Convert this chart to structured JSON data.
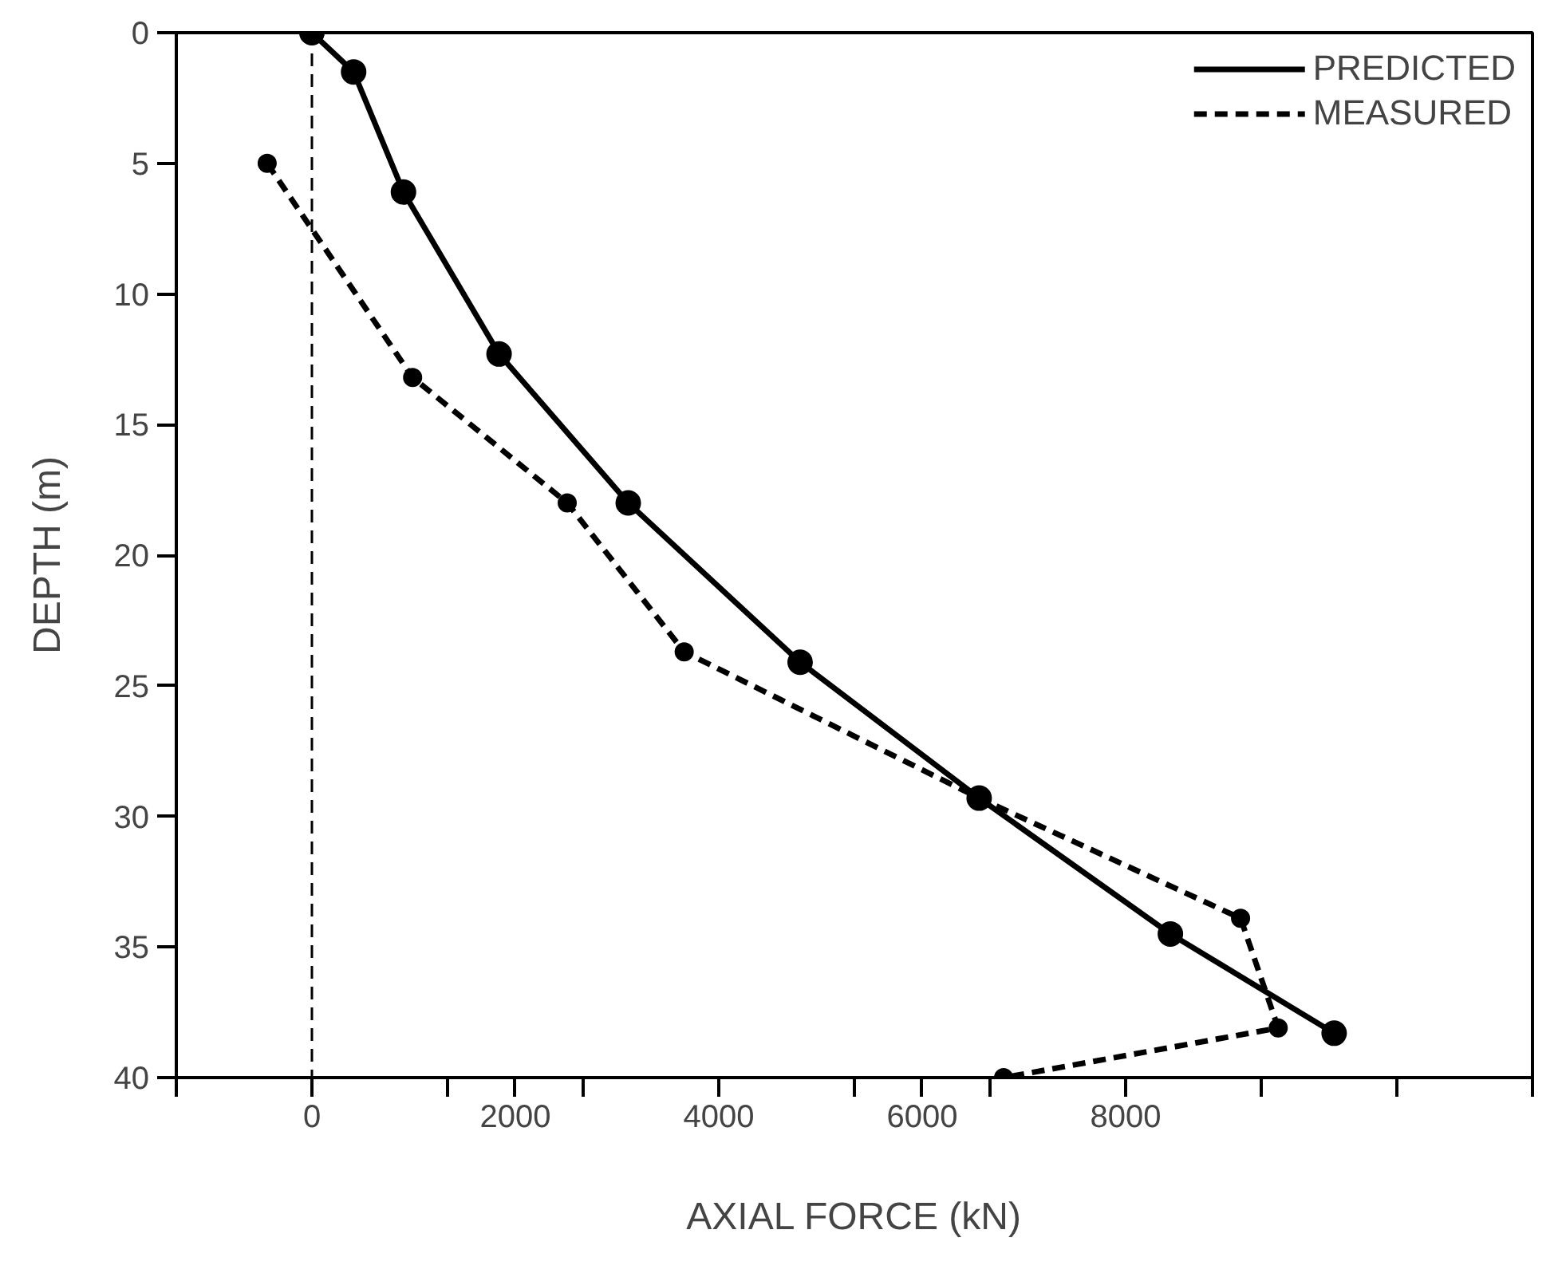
{
  "chart_data": {
    "type": "line",
    "xlabel": "AXIAL FORCE (kN)",
    "ylabel": "DEPTH (m)",
    "xlim": [
      -1333.33,
      12000
    ],
    "ylim": [
      40,
      0
    ],
    "xticks": [
      {
        "value": -1333.33,
        "label": null
      },
      0,
      {
        "value": 1333.33,
        "label": null
      },
      2000,
      {
        "value": 2666.67,
        "label": null
      },
      4000,
      {
        "value": 5333.33,
        "label": null
      },
      6000,
      {
        "value": 6666.67,
        "label": null
      },
      8000,
      {
        "value": 9333.33,
        "label": null
      },
      {
        "value": 10666.67,
        "label": null
      },
      {
        "value": 12000,
        "label": null
      }
    ],
    "yticks": [
      0,
      5,
      10,
      15,
      20,
      25,
      30,
      35,
      40
    ],
    "series": [
      {
        "name": "PREDICTED",
        "color": "#000000",
        "line_style": "solid",
        "x": [
          0,
          410,
          900,
          1840,
          3110,
          4800,
          6560,
          8440,
          10050
        ],
        "values": [
          0,
          1.5,
          6.1,
          12.3,
          18.0,
          24.1,
          29.3,
          34.5,
          38.3
        ]
      },
      {
        "name": "MEASURED",
        "color": "#000000",
        "line_style": "dashed",
        "x": [
          -440,
          990,
          2510,
          3660,
          6560,
          9130,
          9500,
          6800
        ],
        "values": [
          5.0,
          13.2,
          18.0,
          23.7,
          29.3,
          33.9,
          38.1,
          40.0
        ]
      }
    ],
    "ref_lines": [
      {
        "axis": "x",
        "value": 0,
        "line_style": "dashed",
        "color": "#000000"
      }
    ],
    "marker": "circle",
    "grid": false,
    "legend": "top right"
  }
}
